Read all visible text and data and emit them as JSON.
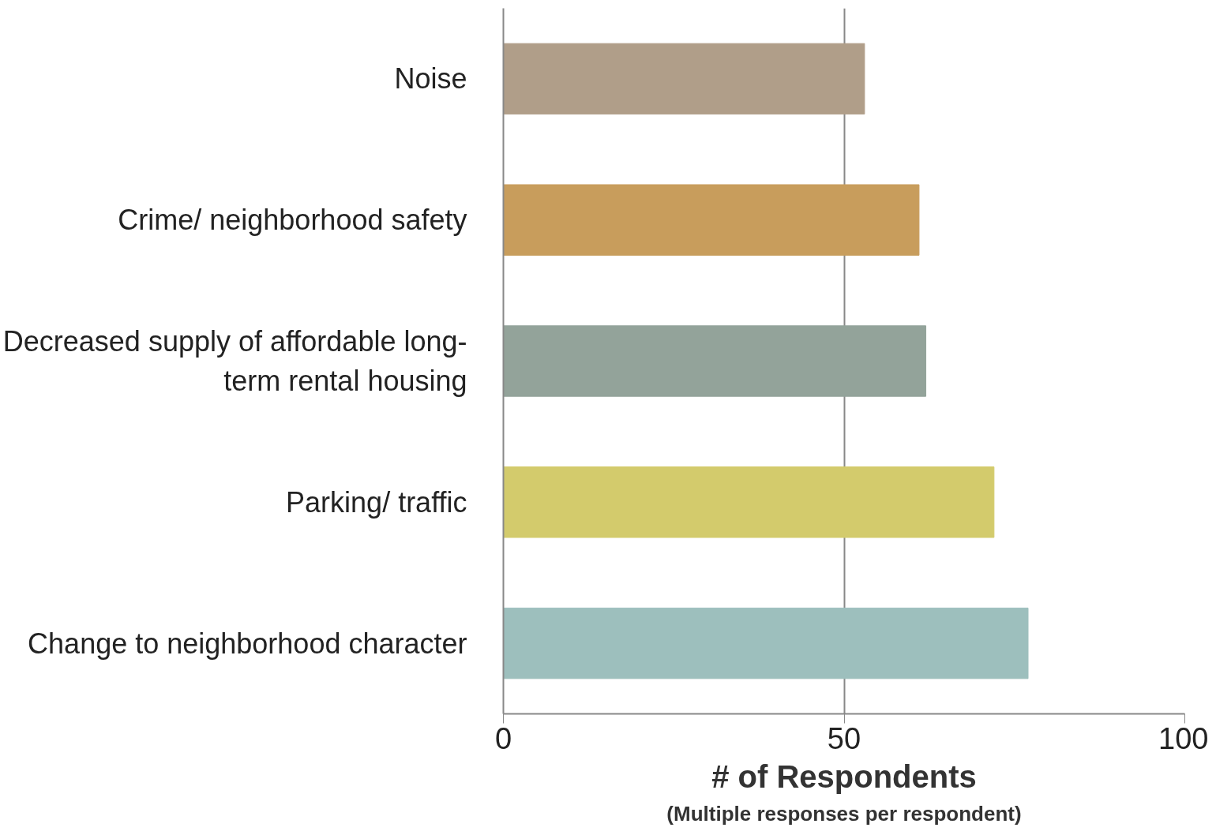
{
  "chart_data": {
    "type": "bar",
    "orientation": "horizontal",
    "categories": [
      "Noise",
      "Crime/ neighborhood safety",
      "Decreased supply of affordable long-term rental housing",
      "Parking/ traffic",
      "Change to neighborhood character"
    ],
    "values": [
      53,
      61,
      62,
      72,
      77
    ],
    "colors": [
      "#b09e89",
      "#c89d5c",
      "#93a39a",
      "#d3cb6c",
      "#9dbfbd"
    ],
    "xlim": [
      0,
      100
    ],
    "xticks": [
      0,
      50,
      100
    ],
    "grid": "x",
    "xlabel": "# of Respondents",
    "annotations": [
      "(Multiple responses per respondent)"
    ]
  }
}
